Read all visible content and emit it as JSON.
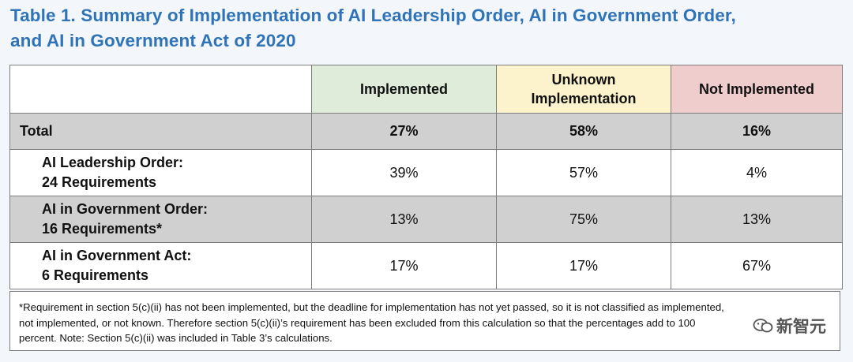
{
  "title": {
    "line1": "Table 1. Summary of Implementation of AI Leadership Order, AI in Government Order,",
    "line2": "and AI in Government Act of 2020"
  },
  "colors": {
    "title": "#2f73b8",
    "implemented_header": "#deecd9",
    "unknown_header": "#fcf2cc",
    "not_implemented_header": "#f0cdcd",
    "shaded_row": "#d0d0d0"
  },
  "table": {
    "headers": {
      "implemented": "Implemented",
      "unknown_line1": "Unknown",
      "unknown_line2": "Implementation",
      "not_implemented": "Not Implemented"
    },
    "total": {
      "label": "Total",
      "implemented": "27%",
      "unknown": "58%",
      "not_implemented": "16%"
    },
    "rows": [
      {
        "line1": "AI Leadership Order:",
        "line2": "24 Requirements",
        "implemented": "39%",
        "unknown": "57%",
        "not_implemented": "4%"
      },
      {
        "line1": "AI in Government Order:",
        "line2": "16 Requirements*",
        "implemented": "13%",
        "unknown": "75%",
        "not_implemented": "13%"
      },
      {
        "line1": "AI in Government Act:",
        "line2": "6 Requirements",
        "implemented": "17%",
        "unknown": "17%",
        "not_implemented": "67%"
      }
    ]
  },
  "footnote": {
    "line1": "*Requirement in section 5(c)(ii) has not been implemented, but the deadline for implementation has not yet passed, so it is not classified as implemented,",
    "line2": "not implemented, or not known. Therefore section 5(c)(ii)’s requirement has been excluded from this calculation so that the percentages add to 100",
    "line3": "percent. Note: Section 5(c)(ii) was included in Table 3’s calculations."
  },
  "watermark": {
    "text": "新智元",
    "icon": "wechat-icon"
  }
}
